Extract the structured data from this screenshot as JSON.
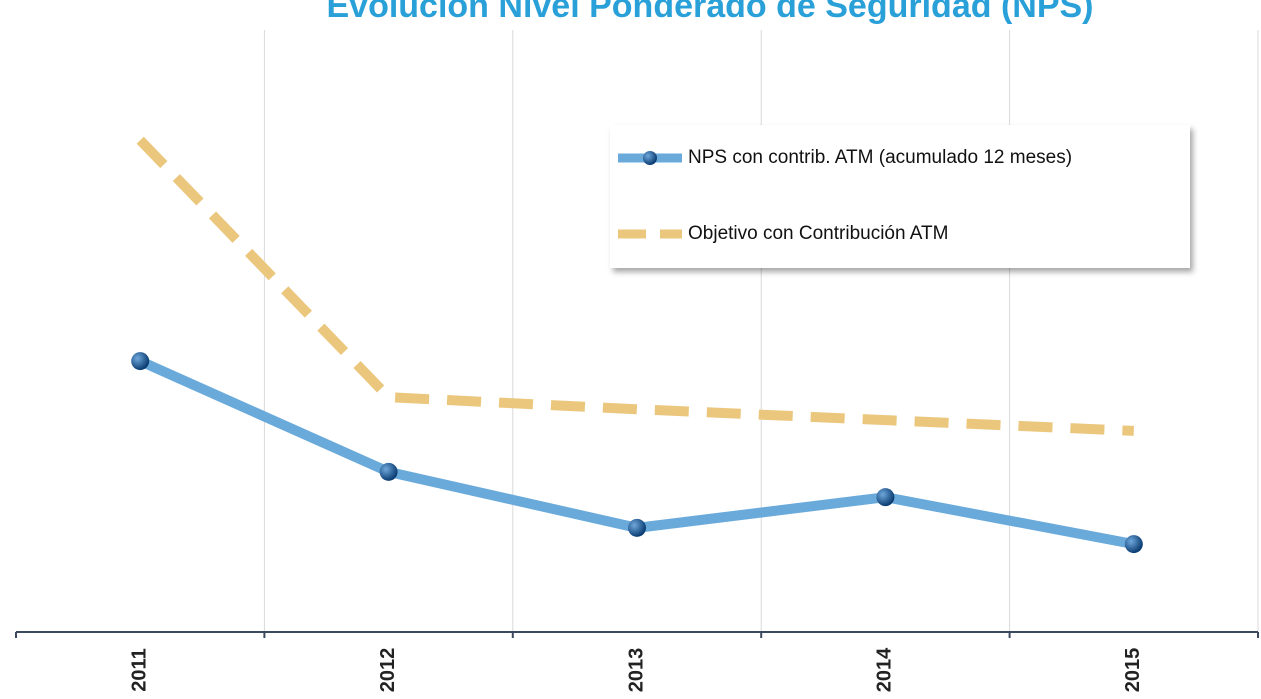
{
  "chart_data": {
    "type": "line",
    "title": "Evolución Nivel Ponderado de Seguridad (NPS)",
    "categories": [
      "2011",
      "2012",
      "2013",
      "2014",
      "2015"
    ],
    "series": [
      {
        "name": "NPS con contrib. ATM (acumulado 12 meses)",
        "color": "#6aaadb",
        "dash": false,
        "markers": true,
        "values": [
          45,
          26.6,
          17.3,
          22.4,
          14.6
        ]
      },
      {
        "name": "Objetivo con Contribución ATM",
        "color": "#ebc77e",
        "dash": true,
        "markers": false,
        "values": [
          81.7,
          39,
          37,
          35.2,
          33.4
        ]
      }
    ],
    "ylim": [
      0,
      100
    ],
    "grid": true,
    "legend": "upper right"
  }
}
